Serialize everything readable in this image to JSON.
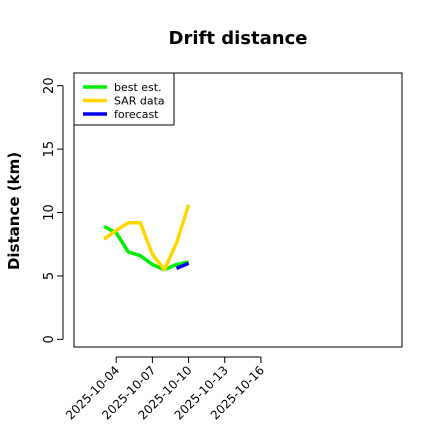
{
  "chart_data": {
    "type": "line",
    "title": "Drift distance",
    "xlabel": "",
    "ylabel": "Distance (km)",
    "ylim": [
      -0.6,
      21
    ],
    "yticks": [
      0,
      5,
      10,
      15,
      20
    ],
    "xlim": [
      -3.5,
      23.7
    ],
    "xticks": [
      0,
      3,
      6,
      9,
      12
    ],
    "xtick_labels": [
      "2025-10-04",
      "2025-10-07",
      "2025-10-10",
      "2025-10-13",
      "2025-10-16"
    ],
    "legend_position": "top-left",
    "grid": false,
    "series": [
      {
        "name": "best est.",
        "color": "#00ee00",
        "x": [
          -1,
          0,
          1,
          2,
          3,
          4,
          5,
          6
        ],
        "y": [
          8.9,
          8.4,
          6.9,
          6.6,
          5.9,
          5.5,
          5.9,
          6.1
        ]
      },
      {
        "name": "SAR data",
        "color": "#ffd700",
        "x": [
          -1,
          0,
          1,
          2,
          3,
          4,
          5,
          6
        ],
        "y": [
          7.9,
          8.6,
          9.2,
          9.2,
          6.7,
          5.5,
          7.6,
          10.6
        ]
      },
      {
        "name": "forecast",
        "color": "#0000ee",
        "x": [
          5,
          6
        ],
        "y": [
          5.6,
          6.0
        ]
      }
    ]
  }
}
